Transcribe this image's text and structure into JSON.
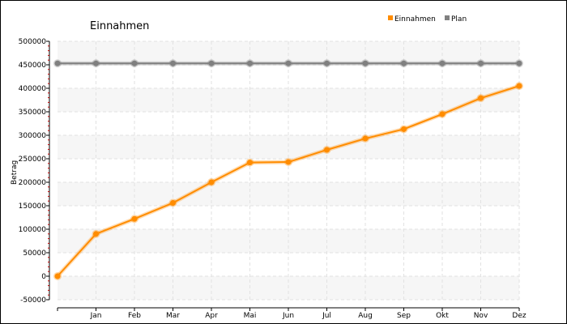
{
  "chart_data": {
    "type": "line",
    "title": "Einnahmen",
    "xlabel": "",
    "ylabel": "Betrag",
    "categories": [
      "",
      "Jan",
      "Feb",
      "Mar",
      "Apr",
      "Mai",
      "Jun",
      "Jul",
      "Aug",
      "Sep",
      "Okt",
      "Nov",
      "Dez"
    ],
    "ylim": [
      -50000,
      500000
    ],
    "yticks": [
      {
        "value": 500000,
        "label": "500000"
      },
      {
        "value": 450000,
        "label": "450000"
      },
      {
        "value": 400000,
        "label": "400000"
      },
      {
        "value": 350000,
        "label": "350000"
      },
      {
        "value": 300000,
        "label": "300000"
      },
      {
        "value": 250000,
        "label": "250000"
      },
      {
        "value": 200000,
        "label": "200000"
      },
      {
        "value": 150000,
        "label": "150000"
      },
      {
        "value": 100000,
        "label": "100000"
      },
      {
        "value": 50000,
        "label": "50000"
      },
      {
        "value": 0,
        "label": "0"
      },
      {
        "value": -50000,
        "label": "-50000"
      }
    ],
    "grid": true,
    "legend_position": "top-right",
    "series": [
      {
        "name": "Einnahmen",
        "color": "#ff8c00",
        "values": [
          0,
          90000,
          122000,
          156000,
          200000,
          242000,
          243000,
          269000,
          293000,
          313000,
          345000,
          379000,
          405000
        ]
      },
      {
        "name": "Plan",
        "color": "#808080",
        "values": [
          453000,
          453000,
          453000,
          453000,
          453000,
          453000,
          453000,
          453000,
          453000,
          453000,
          453000,
          453000,
          453000
        ]
      }
    ]
  }
}
